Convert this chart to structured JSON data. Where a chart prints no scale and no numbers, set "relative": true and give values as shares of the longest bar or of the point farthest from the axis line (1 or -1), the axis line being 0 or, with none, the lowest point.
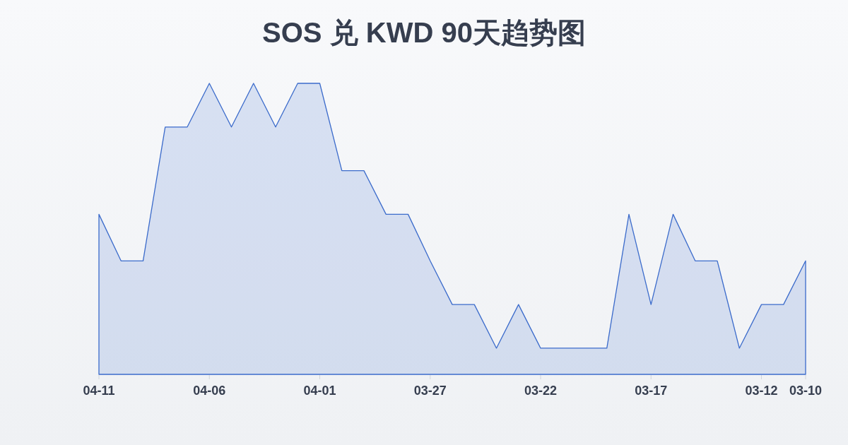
{
  "chart_data": {
    "type": "area",
    "title": "SOS 兑 KWD 90天趋势图",
    "categories": [
      "04-11",
      null,
      null,
      null,
      null,
      "04-06",
      null,
      null,
      null,
      null,
      "04-01",
      null,
      null,
      null,
      null,
      "03-27",
      null,
      null,
      null,
      null,
      "03-22",
      null,
      null,
      null,
      null,
      "03-17",
      null,
      null,
      null,
      null,
      "03-12",
      null,
      "03-10"
    ],
    "relative": true,
    "series": [
      {
        "color": "#3b6bcb",
        "values": [
          0.55,
          0.39,
          0.39,
          0.85,
          0.85,
          1,
          0.85,
          1,
          0.85,
          1,
          1,
          0.7,
          0.7,
          0.55,
          0.55,
          0.39,
          0.24,
          0.24,
          0.09,
          0.24,
          0.09,
          0.09,
          0.09,
          0.09,
          0.55,
          0.24,
          0.55,
          0.39,
          0.39,
          0.09,
          0.24,
          0.24,
          0.39
        ]
      }
    ]
  }
}
